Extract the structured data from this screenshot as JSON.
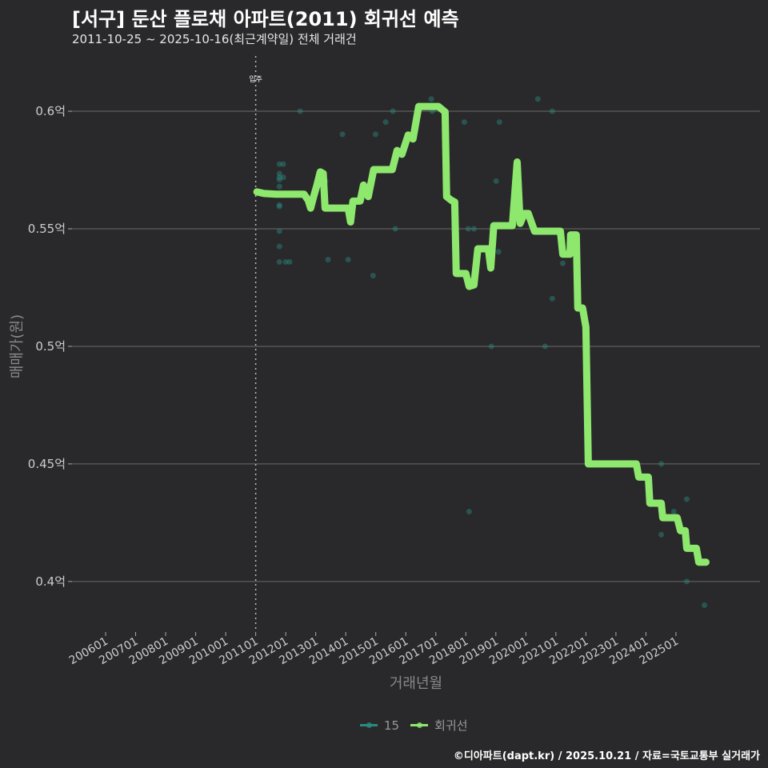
{
  "chart_data": {
    "type": "line",
    "title": "[서구] 둔산 플로채 아파트(2011) 회귀선 예측",
    "subtitle": "2011-10-25 ~ 2025-10-16(최근계약일) 전체 거래건",
    "xlabel": "거래년월",
    "ylabel": "매매가(원)",
    "xlim": [
      2004.88,
      2027.8
    ],
    "ylim": [
      0.3785,
      0.6235
    ],
    "x_ticks": [
      {
        "year": 2006,
        "label": "200601"
      },
      {
        "year": 2007,
        "label": "200701"
      },
      {
        "year": 2008,
        "label": "200801"
      },
      {
        "year": 2009,
        "label": "200901"
      },
      {
        "year": 2010,
        "label": "201001"
      },
      {
        "year": 2011,
        "label": "201101"
      },
      {
        "year": 2012,
        "label": "201201"
      },
      {
        "year": 2013,
        "label": "201301"
      },
      {
        "year": 2014,
        "label": "201401"
      },
      {
        "year": 2015,
        "label": "201501"
      },
      {
        "year": 2016,
        "label": "201601"
      },
      {
        "year": 2017,
        "label": "201701"
      },
      {
        "year": 2018,
        "label": "201801"
      },
      {
        "year": 2019,
        "label": "201901"
      },
      {
        "year": 2020,
        "label": "202001"
      },
      {
        "year": 2021,
        "label": "202101"
      },
      {
        "year": 2022,
        "label": "202201"
      },
      {
        "year": 2023,
        "label": "202301"
      },
      {
        "year": 2024,
        "label": "202401"
      },
      {
        "year": 2025,
        "label": "202501"
      }
    ],
    "y_ticks": [
      {
        "value": 0.6,
        "label": "0.6억"
      },
      {
        "value": 0.55,
        "label": "0.55억"
      },
      {
        "value": 0.5,
        "label": "0.5억"
      },
      {
        "value": 0.45,
        "label": "0.45억"
      },
      {
        "value": 0.4,
        "label": "0.4억"
      }
    ],
    "grid": true,
    "annotation": {
      "year": 2011.0,
      "label": "입주"
    },
    "legend_position": "bottom",
    "series": [
      {
        "name": "15",
        "type": "scatter",
        "color": "#2a8a80",
        "points": [
          [
            2011.79,
            0.5775
          ],
          [
            2011.79,
            0.5735
          ],
          [
            2011.79,
            0.5719
          ],
          [
            2011.79,
            0.5709
          ],
          [
            2011.79,
            0.568
          ],
          [
            2011.79,
            0.5601
          ],
          [
            2011.79,
            0.5595
          ],
          [
            2011.79,
            0.549
          ],
          [
            2011.79,
            0.5425
          ],
          [
            2011.79,
            0.5359
          ],
          [
            2011.92,
            0.5775
          ],
          [
            2011.92,
            0.5719
          ],
          [
            2012.0,
            0.5359
          ],
          [
            2012.13,
            0.5359
          ],
          [
            2012.48,
            0.6
          ],
          [
            2013.33,
            0.5703
          ],
          [
            2013.41,
            0.5369
          ],
          [
            2013.89,
            0.5902
          ],
          [
            2014.08,
            0.5369
          ],
          [
            2014.91,
            0.5301
          ],
          [
            2014.99,
            0.5902
          ],
          [
            2015.33,
            0.5954
          ],
          [
            2015.57,
            0.6
          ],
          [
            2015.65,
            0.55
          ],
          [
            2016.85,
            0.6052
          ],
          [
            2016.88,
            0.6
          ],
          [
            2017.95,
            0.5954
          ],
          [
            2018.08,
            0.55
          ],
          [
            2018.11,
            0.4297
          ],
          [
            2018.27,
            0.55
          ],
          [
            2018.85,
            0.5
          ],
          [
            2019.01,
            0.5703
          ],
          [
            2019.09,
            0.5402
          ],
          [
            2019.12,
            0.5954
          ],
          [
            2020.4,
            0.6052
          ],
          [
            2020.64,
            0.5
          ],
          [
            2020.88,
            0.6
          ],
          [
            2020.88,
            0.5203
          ],
          [
            2021.23,
            0.5353
          ],
          [
            2024.51,
            0.45
          ],
          [
            2024.51,
            0.4199
          ],
          [
            2024.93,
            0.4297
          ],
          [
            2025.36,
            0.435
          ],
          [
            2025.36,
            0.4
          ],
          [
            2025.95,
            0.3899
          ]
        ]
      },
      {
        "name": "회귀선",
        "type": "line",
        "color": "#8ee86e",
        "points": [
          [
            2011.04,
            0.5657
          ],
          [
            2011.28,
            0.565
          ],
          [
            2011.68,
            0.5647
          ],
          [
            2012.61,
            0.5647
          ],
          [
            2012.75,
            0.5621
          ],
          [
            2012.83,
            0.5588
          ],
          [
            2012.93,
            0.5637
          ],
          [
            2013.04,
            0.5686
          ],
          [
            2013.15,
            0.5742
          ],
          [
            2013.25,
            0.5735
          ],
          [
            2013.31,
            0.5588
          ],
          [
            2014.08,
            0.5588
          ],
          [
            2014.16,
            0.5529
          ],
          [
            2014.24,
            0.5618
          ],
          [
            2014.48,
            0.5618
          ],
          [
            2014.59,
            0.5686
          ],
          [
            2014.75,
            0.5637
          ],
          [
            2014.93,
            0.5752
          ],
          [
            2015.55,
            0.5752
          ],
          [
            2015.71,
            0.5833
          ],
          [
            2015.87,
            0.5817
          ],
          [
            2016.08,
            0.5899
          ],
          [
            2016.24,
            0.5882
          ],
          [
            2016.43,
            0.602
          ],
          [
            2017.09,
            0.602
          ],
          [
            2017.31,
            0.5997
          ],
          [
            2017.36,
            0.5637
          ],
          [
            2017.52,
            0.5621
          ],
          [
            2017.63,
            0.5614
          ],
          [
            2017.68,
            0.531
          ],
          [
            2018.0,
            0.531
          ],
          [
            2018.11,
            0.5255
          ],
          [
            2018.27,
            0.5261
          ],
          [
            2018.4,
            0.5415
          ],
          [
            2018.75,
            0.5415
          ],
          [
            2018.83,
            0.5333
          ],
          [
            2018.93,
            0.5513
          ],
          [
            2019.55,
            0.5513
          ],
          [
            2019.71,
            0.5784
          ],
          [
            2019.81,
            0.5523
          ],
          [
            2019.95,
            0.5565
          ],
          [
            2020.08,
            0.5565
          ],
          [
            2020.29,
            0.549
          ],
          [
            2021.15,
            0.549
          ],
          [
            2021.23,
            0.5392
          ],
          [
            2021.47,
            0.5392
          ],
          [
            2021.49,
            0.5474
          ],
          [
            2021.68,
            0.5474
          ],
          [
            2021.73,
            0.5163
          ],
          [
            2021.89,
            0.5163
          ],
          [
            2022.0,
            0.5082
          ],
          [
            2022.08,
            0.45
          ],
          [
            2023.68,
            0.45
          ],
          [
            2023.76,
            0.4444
          ],
          [
            2024.08,
            0.4444
          ],
          [
            2024.13,
            0.4333
          ],
          [
            2024.51,
            0.4333
          ],
          [
            2024.56,
            0.4271
          ],
          [
            2025.04,
            0.4271
          ],
          [
            2025.15,
            0.4216
          ],
          [
            2025.31,
            0.4216
          ],
          [
            2025.36,
            0.4141
          ],
          [
            2025.68,
            0.4141
          ],
          [
            2025.76,
            0.4082
          ],
          [
            2026.0,
            0.4082
          ]
        ]
      }
    ],
    "footer": "©디아파트(dapt.kr) / 2025.10.21 / 자료=국토교통부 실거래가"
  }
}
